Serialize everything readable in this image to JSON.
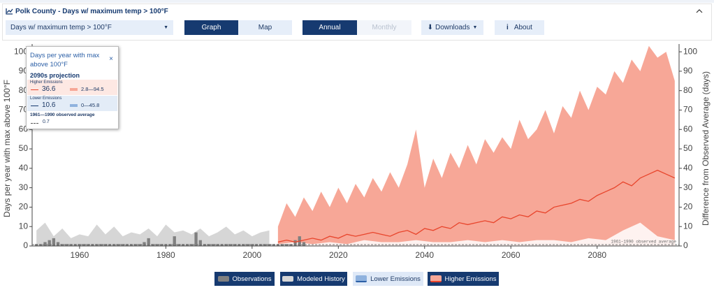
{
  "header": {
    "title": "Polk County - Days w/ maximum temp > 100°F"
  },
  "controls": {
    "variable": "Days w/ maximum temp > 100°F",
    "view": [
      "Graph",
      "Map"
    ],
    "period": [
      "Annual",
      "Monthly"
    ],
    "downloads": "Downloads",
    "about": "About"
  },
  "chart_data": {
    "type": "area",
    "ylabel": "Days per year with max above 100°F",
    "y2label": "Difference from Observed Average (days)",
    "xlim": [
      1949,
      2099
    ],
    "xticks": [
      1960,
      1980,
      2000,
      2020,
      2040,
      2060,
      2080
    ],
    "ylim": [
      0,
      104
    ],
    "yticks": [
      0,
      10,
      20,
      30,
      40,
      50,
      60,
      70,
      80,
      90,
      100
    ],
    "y2lim": [
      0,
      104
    ],
    "y2ticks": [
      0,
      10,
      20,
      30,
      40,
      50,
      60,
      70,
      80,
      90,
      100
    ],
    "baseline": {
      "name": "1961–1990 observed average",
      "value": 0.7
    },
    "series": [
      {
        "name": "Observations",
        "type": "bar",
        "color": "#808080",
        "x": [
          1950,
          1951,
          1952,
          1953,
          1954,
          1955,
          1956,
          1957,
          1958,
          1959,
          1960,
          1961,
          1962,
          1963,
          1964,
          1965,
          1966,
          1967,
          1968,
          1969,
          1970,
          1971,
          1972,
          1973,
          1974,
          1975,
          1976,
          1977,
          1978,
          1979,
          1980,
          1981,
          1982,
          1983,
          1984,
          1985,
          1986,
          1987,
          1988,
          1989,
          1990,
          1991,
          1992,
          1993,
          1994,
          1995,
          1996,
          1997,
          1998,
          1999,
          2000,
          2001,
          2002,
          2003,
          2004,
          2005,
          2006,
          2007,
          2008,
          2009,
          2010,
          2011,
          2012
        ],
        "values": [
          1,
          1,
          2,
          3,
          4,
          2,
          1,
          1,
          1,
          1,
          1,
          1,
          1,
          1,
          1,
          1,
          1,
          1,
          1,
          1,
          1,
          1,
          1,
          1,
          1,
          2,
          4,
          1,
          1,
          1,
          1,
          1,
          5,
          1,
          1,
          1,
          1,
          7,
          3,
          1,
          1,
          1,
          1,
          1,
          1,
          1,
          1,
          1,
          1,
          1,
          1,
          1,
          1,
          1,
          1,
          1,
          1,
          1,
          1,
          1,
          3,
          5,
          2
        ]
      },
      {
        "name": "Modeled History",
        "type": "area",
        "color": "#d6d6d6",
        "x": [
          1950,
          1952,
          1954,
          1956,
          1958,
          1960,
          1962,
          1964,
          1966,
          1968,
          1970,
          1972,
          1974,
          1976,
          1978,
          1980,
          1982,
          1984,
          1986,
          1988,
          1990,
          1992,
          1994,
          1996,
          1998,
          2000,
          2002,
          2004
        ],
        "values": [
          8,
          12,
          5,
          9,
          4,
          6,
          5,
          11,
          6,
          10,
          5,
          7,
          6,
          9,
          5,
          11,
          7,
          8,
          6,
          9,
          5,
          7,
          10,
          6,
          8,
          5,
          7,
          8
        ]
      },
      {
        "name": "Higher Emissions",
        "type": "area",
        "color": "#f7a797",
        "x": [
          2006,
          2008,
          2010,
          2012,
          2014,
          2016,
          2018,
          2020,
          2022,
          2024,
          2026,
          2028,
          2030,
          2032,
          2034,
          2036,
          2038,
          2040,
          2042,
          2044,
          2046,
          2048,
          2050,
          2052,
          2054,
          2056,
          2058,
          2060,
          2062,
          2064,
          2066,
          2068,
          2070,
          2072,
          2074,
          2076,
          2078,
          2080,
          2082,
          2084,
          2086,
          2088,
          2090,
          2092,
          2094,
          2096,
          2098
        ],
        "values": [
          10,
          22,
          15,
          25,
          18,
          28,
          20,
          30,
          22,
          32,
          25,
          35,
          28,
          38,
          30,
          42,
          60,
          30,
          45,
          35,
          48,
          40,
          52,
          42,
          55,
          48,
          56,
          50,
          65,
          55,
          60,
          70,
          58,
          72,
          66,
          80,
          70,
          82,
          78,
          90,
          84,
          96,
          90,
          103,
          97,
          100,
          85
        ]
      },
      {
        "name": "Higher Emissions",
        "type": "line",
        "color": "#e8452c",
        "x": [
          2006,
          2008,
          2010,
          2012,
          2014,
          2016,
          2018,
          2020,
          2022,
          2024,
          2026,
          2028,
          2030,
          2032,
          2034,
          2036,
          2038,
          2040,
          2042,
          2044,
          2046,
          2048,
          2050,
          2052,
          2054,
          2056,
          2058,
          2060,
          2062,
          2064,
          2066,
          2068,
          2070,
          2072,
          2074,
          2076,
          2078,
          2080,
          2082,
          2084,
          2086,
          2088,
          2090,
          2092,
          2094,
          2096,
          2098
        ],
        "values": [
          2,
          3,
          2,
          3,
          4,
          3,
          5,
          4,
          6,
          5,
          6,
          7,
          6,
          5,
          7,
          8,
          6,
          9,
          8,
          10,
          9,
          12,
          11,
          12,
          13,
          12,
          15,
          14,
          16,
          15,
          18,
          17,
          20,
          21,
          22,
          24,
          23,
          26,
          28,
          30,
          33,
          31,
          35,
          37,
          39,
          37,
          35
        ]
      },
      {
        "name": "Lower Emissions",
        "type": "area",
        "color": "#ffffff",
        "x": [
          2006,
          2010,
          2014,
          2018,
          2022,
          2026,
          2030,
          2034,
          2038,
          2042,
          2046,
          2050,
          2054,
          2058,
          2062,
          2066,
          2070,
          2074,
          2078,
          2082,
          2086,
          2090,
          2094,
          2098
        ],
        "values": [
          1,
          2,
          1,
          2,
          1,
          3,
          2,
          2,
          3,
          2,
          2,
          3,
          2,
          3,
          2,
          3,
          3,
          2,
          4,
          3,
          8,
          12,
          5,
          3
        ]
      }
    ]
  },
  "tooltip": {
    "title": "Days per year with max above 100°F",
    "close": "×",
    "projection": "2090s projection",
    "higher": {
      "label": "Higher Emissions",
      "median": "36.6",
      "range": "2.8—94.5"
    },
    "lower": {
      "label": "Lower Emissions",
      "median": "10.6",
      "range": "0—45.8"
    },
    "observed": {
      "label": "1961—1990 observed average",
      "value": "0.7"
    }
  },
  "legend": [
    {
      "series": 0
    },
    {
      "series": 1
    },
    {
      "series": 4
    },
    {
      "series": 2
    }
  ]
}
